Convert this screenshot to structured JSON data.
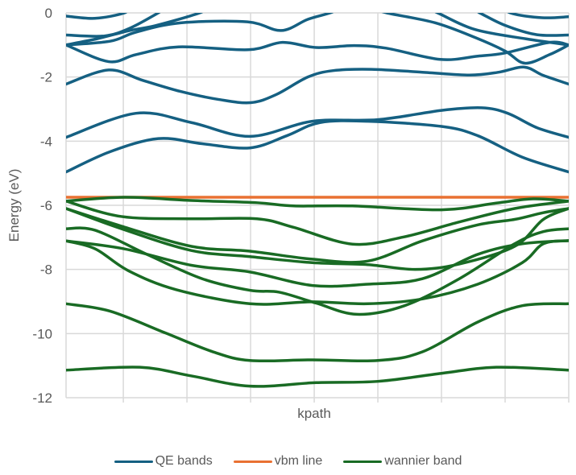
{
  "chart_data": {
    "type": "line",
    "title": "",
    "xlabel": "kpath",
    "ylabel": "Energy (eV)",
    "xlim": [
      0,
      79
    ],
    "ylim": [
      -12,
      0
    ],
    "yticks": [
      0,
      -2,
      -4,
      -6,
      -8,
      -10,
      -12
    ],
    "ytick_labels": [
      "0",
      "-2",
      "-4",
      "-6",
      "-8",
      "-10",
      "-12"
    ],
    "x_gridlines": [
      0,
      9,
      19,
      29,
      39,
      49,
      59,
      69,
      79
    ],
    "grid": true,
    "legend_position": "bottom",
    "colors": {
      "QE bands": "#156082",
      "vbm line": "#e97132",
      "wannier band": "#196b24",
      "grid": "#d9d9d9",
      "text": "#595959"
    },
    "series": [
      {
        "name": "QE bands",
        "bands": [
          [
            [
              0,
              -0.1
            ],
            [
              4.5,
              -0.17
            ],
            [
              9.2,
              0
            ],
            [
              12,
              0.3
            ],
            [
              40,
              0.6
            ],
            [
              66,
              0.4
            ],
            [
              69.8,
              0
            ],
            [
              74.8,
              -0.15
            ],
            [
              79,
              -0.12
            ]
          ],
          [
            [
              0,
              -0.69
            ],
            [
              6,
              -0.72
            ],
            [
              10,
              -0.48
            ],
            [
              14.5,
              0
            ],
            [
              17,
              0.3
            ],
            [
              40,
              0.6
            ],
            [
              62,
              0.3
            ],
            [
              65,
              0
            ],
            [
              69,
              -0.39
            ],
            [
              74,
              -0.68
            ],
            [
              79,
              -0.69
            ]
          ],
          [
            [
              0,
              -1.0
            ],
            [
              5,
              -0.8
            ],
            [
              10,
              -0.55
            ],
            [
              14,
              -0.4
            ],
            [
              21,
              0
            ],
            [
              24,
              0.3
            ],
            [
              40,
              0.6
            ],
            [
              55,
              0.3
            ],
            [
              58.4,
              0
            ],
            [
              64.3,
              -0.52
            ],
            [
              72.3,
              -0.81
            ],
            [
              79,
              -1.0
            ]
          ],
          [
            [
              0,
              -1.0
            ],
            [
              7,
              -0.88
            ],
            [
              11,
              -0.6
            ],
            [
              18,
              -0.31
            ],
            [
              28.5,
              -0.28
            ],
            [
              33.8,
              -0.55
            ],
            [
              38,
              -0.2
            ],
            [
              41.5,
              0
            ],
            [
              44,
              0.2
            ],
            [
              48,
              0.15
            ],
            [
              50.4,
              0
            ],
            [
              58,
              -0.31
            ],
            [
              64.3,
              -0.77
            ],
            [
              69,
              -1.19
            ],
            [
              72.1,
              -1.57
            ],
            [
              76,
              -1.3
            ],
            [
              79,
              -1.0
            ]
          ],
          [
            [
              0,
              -1.0
            ],
            [
              6.7,
              -1.52
            ],
            [
              11,
              -1.3
            ],
            [
              17.7,
              -1.06
            ],
            [
              28.6,
              -1.15
            ],
            [
              34,
              -0.92
            ],
            [
              39.3,
              -1.08
            ],
            [
              45.3,
              -1.02
            ],
            [
              50.3,
              -1.1
            ],
            [
              58.8,
              -1.45
            ],
            [
              64.7,
              -1.35
            ],
            [
              69,
              -1.25
            ],
            [
              76,
              -0.92
            ],
            [
              79,
              -1.0
            ]
          ],
          [
            [
              0,
              -2.22
            ],
            [
              6.7,
              -1.78
            ],
            [
              12,
              -2.1
            ],
            [
              18,
              -2.45
            ],
            [
              24,
              -2.7
            ],
            [
              29,
              -2.8
            ],
            [
              33,
              -2.55
            ],
            [
              38,
              -2.0
            ],
            [
              42,
              -1.8
            ],
            [
              48,
              -1.76
            ],
            [
              56,
              -1.85
            ],
            [
              63.4,
              -1.94
            ],
            [
              68,
              -1.85
            ],
            [
              72,
              -1.69
            ],
            [
              75,
              -1.95
            ],
            [
              79,
              -2.22
            ]
          ],
          [
            [
              0,
              -3.88
            ],
            [
              11,
              -3.13
            ],
            [
              19.7,
              -3.42
            ],
            [
              28.9,
              -3.85
            ],
            [
              38.7,
              -3.38
            ],
            [
              49,
              -3.33
            ],
            [
              59,
              -3.04
            ],
            [
              65.3,
              -2.96
            ],
            [
              69.4,
              -3.13
            ],
            [
              74,
              -3.58
            ],
            [
              79,
              -3.88
            ]
          ],
          [
            [
              0,
              -4.96
            ],
            [
              6.9,
              -4.33
            ],
            [
              14.5,
              -3.92
            ],
            [
              21.4,
              -4.08
            ],
            [
              28.9,
              -4.21
            ],
            [
              34.7,
              -3.83
            ],
            [
              39.9,
              -3.42
            ],
            [
              47.4,
              -3.38
            ],
            [
              59,
              -3.54
            ],
            [
              64.7,
              -3.83
            ],
            [
              71.7,
              -4.5
            ],
            [
              79,
              -4.96
            ]
          ]
        ]
      },
      {
        "name": "vbm line",
        "bands": [
          [
            [
              0,
              -5.75
            ],
            [
              79,
              -5.75
            ]
          ]
        ]
      },
      {
        "name": "wannier band",
        "bands": [
          [
            [
              0,
              -5.87
            ],
            [
              9.2,
              -5.75
            ],
            [
              19.7,
              -5.85
            ],
            [
              30,
              -5.92
            ],
            [
              35.8,
              -6.02
            ],
            [
              45,
              -6.02
            ],
            [
              59,
              -6.14
            ],
            [
              67.6,
              -5.93
            ],
            [
              73.4,
              -5.8
            ],
            [
              79,
              -5.87
            ]
          ],
          [
            [
              0,
              -5.87
            ],
            [
              8.7,
              -6.35
            ],
            [
              19.7,
              -6.42
            ],
            [
              30,
              -6.42
            ],
            [
              35.8,
              -6.69
            ],
            [
              45,
              -7.21
            ],
            [
              53,
              -6.99
            ],
            [
              61.8,
              -6.52
            ],
            [
              70.5,
              -6.1
            ],
            [
              79,
              -5.87
            ]
          ],
          [
            [
              0,
              -6.1
            ],
            [
              8.7,
              -6.65
            ],
            [
              19.7,
              -7.28
            ],
            [
              28.9,
              -7.43
            ],
            [
              38.7,
              -7.68
            ],
            [
              47.4,
              -7.74
            ],
            [
              56,
              -7.11
            ],
            [
              64.7,
              -6.61
            ],
            [
              70.5,
              -6.44
            ],
            [
              75,
              -6.23
            ],
            [
              79,
              -6.1
            ]
          ],
          [
            [
              0,
              -6.1
            ],
            [
              8.7,
              -6.73
            ],
            [
              19.7,
              -7.41
            ],
            [
              28.9,
              -7.6
            ],
            [
              38.7,
              -7.79
            ],
            [
              47.4,
              -7.85
            ],
            [
              54.9,
              -8.0
            ],
            [
              61.8,
              -7.83
            ],
            [
              70.5,
              -7.28
            ],
            [
              75,
              -6.44
            ],
            [
              79,
              -6.1
            ]
          ],
          [
            [
              0,
              -6.73
            ],
            [
              4.6,
              -6.78
            ],
            [
              12.7,
              -7.53
            ],
            [
              21.4,
              -8.29
            ],
            [
              28.9,
              -8.65
            ],
            [
              33.5,
              -8.71
            ],
            [
              39.3,
              -9.05
            ],
            [
              45.7,
              -9.4
            ],
            [
              53.2,
              -9.13
            ],
            [
              61.8,
              -8.29
            ],
            [
              70.5,
              -7.2
            ],
            [
              75,
              -6.82
            ],
            [
              79,
              -6.73
            ]
          ],
          [
            [
              0,
              -7.11
            ],
            [
              9.2,
              -7.36
            ],
            [
              19.7,
              -7.87
            ],
            [
              28.9,
              -8.08
            ],
            [
              38.7,
              -8.5
            ],
            [
              47.4,
              -8.46
            ],
            [
              56,
              -8.29
            ],
            [
              64.7,
              -7.53
            ],
            [
              71.7,
              -7.2
            ],
            [
              79,
              -7.1
            ]
          ],
          [
            [
              0,
              -7.11
            ],
            [
              4.6,
              -7.36
            ],
            [
              9.8,
              -8.04
            ],
            [
              17.3,
              -8.63
            ],
            [
              28.9,
              -9.07
            ],
            [
              38.7,
              -9.01
            ],
            [
              47.4,
              -9.07
            ],
            [
              56,
              -8.92
            ],
            [
              64.7,
              -8.46
            ],
            [
              71.7,
              -7.79
            ],
            [
              75,
              -7.2
            ],
            [
              79,
              -7.1
            ]
          ],
          [
            [
              0,
              -9.07
            ],
            [
              6.9,
              -9.3
            ],
            [
              15.6,
              -9.98
            ],
            [
              23.1,
              -10.57
            ],
            [
              28.9,
              -10.84
            ],
            [
              38.7,
              -10.82
            ],
            [
              49,
              -10.84
            ],
            [
              56,
              -10.57
            ],
            [
              64.7,
              -9.64
            ],
            [
              71.7,
              -9.13
            ],
            [
              79,
              -9.07
            ]
          ],
          [
            [
              0,
              -11.14
            ],
            [
              11.6,
              -11.05
            ],
            [
              19.7,
              -11.32
            ],
            [
              28.9,
              -11.64
            ],
            [
              39.3,
              -11.53
            ],
            [
              49,
              -11.49
            ],
            [
              59,
              -11.24
            ],
            [
              67.6,
              -11.05
            ],
            [
              79,
              -11.14
            ]
          ]
        ]
      }
    ]
  }
}
